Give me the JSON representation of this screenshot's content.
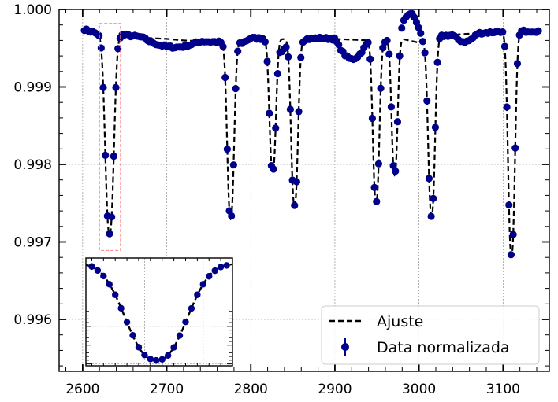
{
  "chart_data": {
    "type": "scatter",
    "title": "",
    "xlabel": "",
    "ylabel": "",
    "xlim": [
      2572,
      3155
    ],
    "ylim": [
      0.99533,
      1.0
    ],
    "xticks": [
      2600,
      2700,
      2800,
      2900,
      3000,
      3100
    ],
    "yticks": [
      0.996,
      0.997,
      0.998,
      0.999,
      1.0
    ],
    "xtick_labels": [
      "2600",
      "2700",
      "2800",
      "2900",
      "3000",
      "3100"
    ],
    "ytick_labels": [
      "0.996",
      "0.997",
      "0.998",
      "0.999",
      "1.000"
    ],
    "grid": true,
    "legend_position": "lower-right",
    "legend": [
      {
        "label": "Ajuste",
        "style": "dashed-line",
        "color": "#000000"
      },
      {
        "label": "Data normalizada",
        "style": "marker-errorbar",
        "color": "#00008b"
      }
    ],
    "baseline": [
      [
        2600,
        0.99975
      ],
      [
        2620,
        0.99968
      ],
      [
        2650,
        0.99967
      ],
      [
        2680,
        0.99963
      ],
      [
        2700,
        0.99962
      ],
      [
        2720,
        0.9996
      ],
      [
        2740,
        0.99959
      ],
      [
        2760,
        0.99958
      ],
      [
        2790,
        0.99957
      ],
      [
        2800,
        0.99963
      ],
      [
        2830,
        0.99962
      ],
      [
        2860,
        0.99961
      ],
      [
        2880,
        0.99963
      ],
      [
        2900,
        0.99962
      ],
      [
        2940,
        0.9996
      ],
      [
        2960,
        0.9996
      ],
      [
        2980,
        0.99962
      ],
      [
        3000,
        0.99957
      ],
      [
        3020,
        0.99965
      ],
      [
        3050,
        0.99968
      ],
      [
        3080,
        0.9997
      ],
      [
        3100,
        0.99972
      ],
      [
        3140,
        0.99972
      ]
    ],
    "transits": [
      {
        "center": 2632,
        "depth": 0.00258,
        "width": 5
      },
      {
        "center": 2776,
        "depth": 0.00228,
        "width": 4
      },
      {
        "center": 2826,
        "depth": 0.00172,
        "width": 3.8
      },
      {
        "center": 2852,
        "depth": 0.00215,
        "width": 4
      },
      {
        "center": 2949,
        "depth": 0.0021,
        "width": 3.8
      },
      {
        "center": 2971,
        "depth": 0.00175,
        "width": 3.5
      },
      {
        "center": 3015,
        "depth": 0.0023,
        "width": 4
      },
      {
        "center": 3110,
        "depth": 0.0029,
        "width": 4
      }
    ],
    "data_bumps": [
      {
        "x0": 2670,
        "x1": 2740,
        "offset": -0.0001
      },
      {
        "x0": 2830,
        "x1": 2845,
        "offset": -0.00015
      },
      {
        "x0": 2900,
        "x1": 2940,
        "offset": -0.00025
      },
      {
        "x0": 2975,
        "x1": 3005,
        "offset": 0.00035
      },
      {
        "x0": 3040,
        "x1": 3070,
        "offset": -0.0001
      }
    ],
    "x_start": 2602,
    "x_end": 3142,
    "x_step": 2.5,
    "highlight_box": {
      "x": [
        2620,
        2645
      ],
      "y": [
        0.99689,
        0.99982
      ],
      "color": "#ff8080"
    },
    "inset": {
      "xlim": [
        2620,
        2645
      ],
      "ylim": [
        0.99695,
        0.99982
      ],
      "source_transit": 0
    }
  }
}
